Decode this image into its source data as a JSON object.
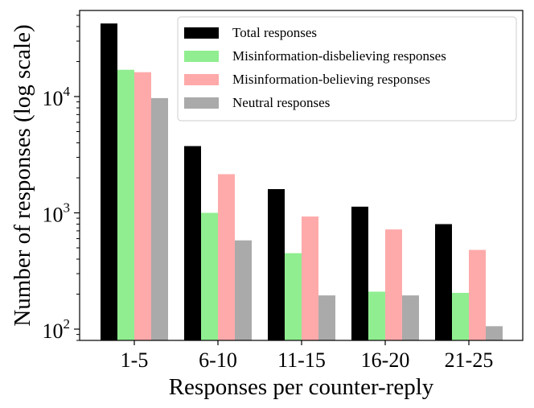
{
  "chart_data": {
    "type": "bar",
    "scale": "log",
    "xlabel": "Responses per counter-reply",
    "ylabel": "Number of responses (log scale)",
    "ylim": [
      80,
      55000
    ],
    "y_ticks": [
      {
        "value": 100,
        "base": "10",
        "exp": "2"
      },
      {
        "value": 1000,
        "base": "10",
        "exp": "3"
      },
      {
        "value": 10000,
        "base": "10",
        "exp": "4"
      }
    ],
    "categories": [
      "1-5",
      "6-10",
      "11-15",
      "16-20",
      "21-25"
    ],
    "series": [
      {
        "name": "Total responses",
        "color": "#000000",
        "values": [
          42500,
          3750,
          1600,
          1130,
          800
        ]
      },
      {
        "name": "Misinformation-disbelieving responses",
        "color": "#90ee90",
        "values": [
          17000,
          1000,
          450,
          210,
          205
        ]
      },
      {
        "name": "Misinformation-believing responses",
        "color": "#ffaaaa",
        "values": [
          16200,
          2150,
          930,
          720,
          480
        ]
      },
      {
        "name": "Neutral responses",
        "color": "#aaaaaa",
        "values": [
          9700,
          580,
          195,
          195,
          106
        ]
      }
    ],
    "legend_position": "top-right"
  }
}
